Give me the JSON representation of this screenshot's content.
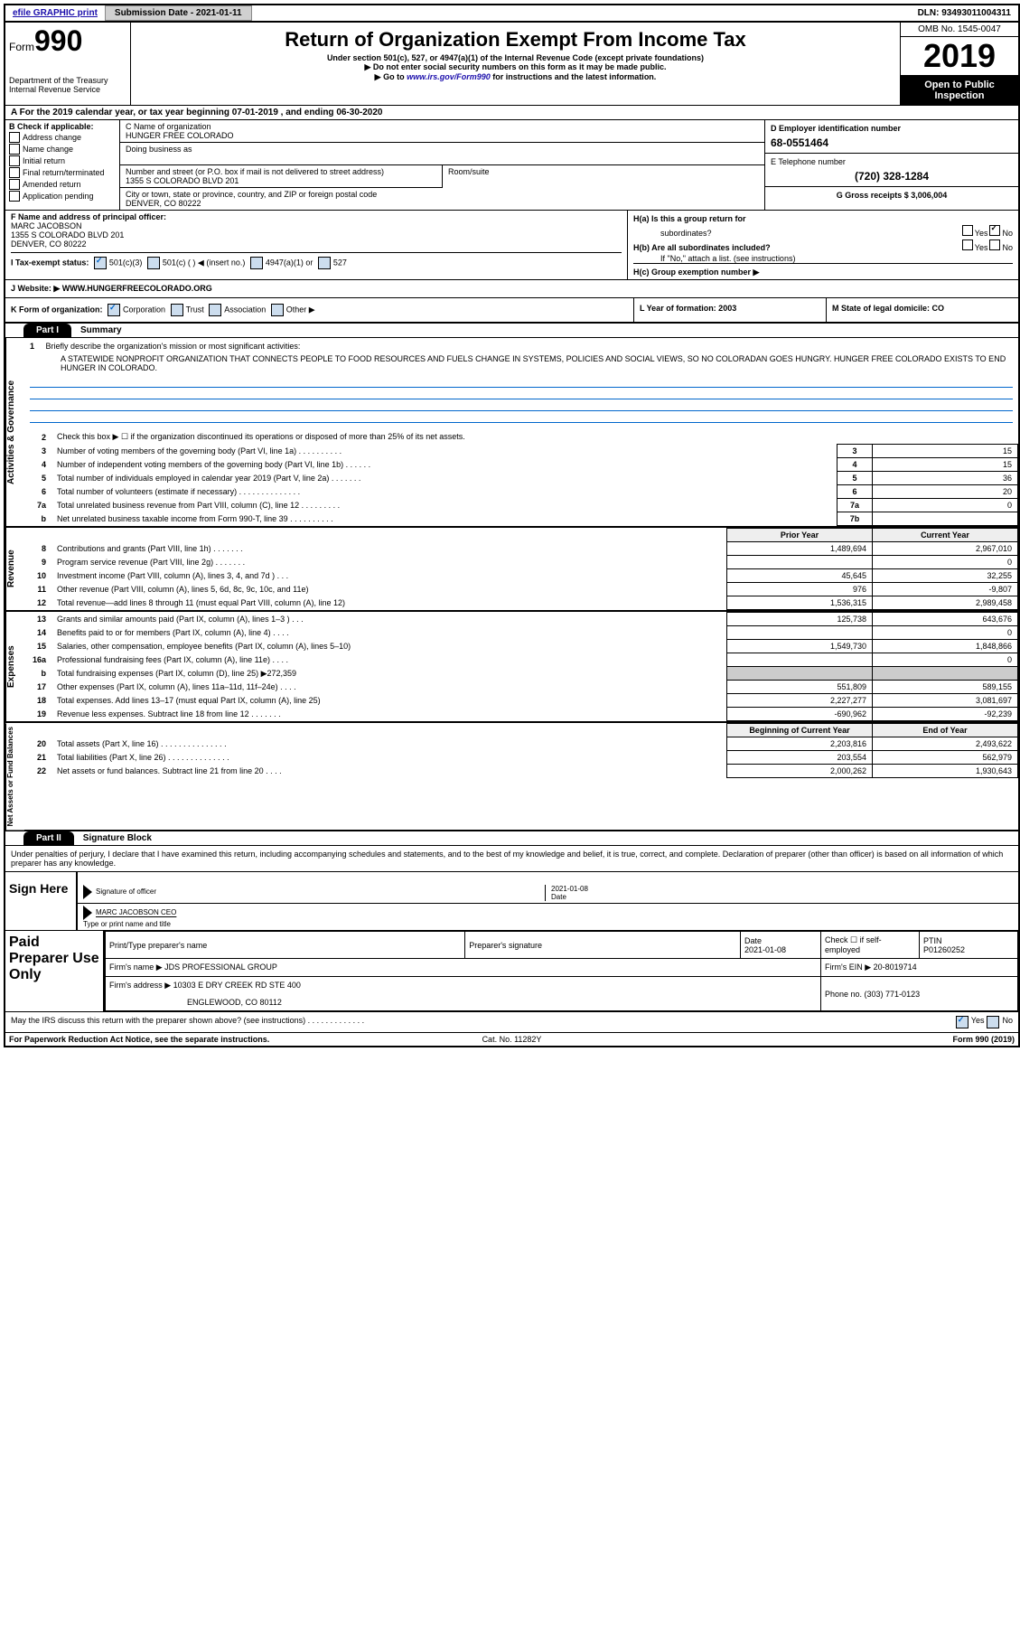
{
  "top": {
    "efile": "efile GRAPHIC print",
    "submission": "Submission Date - 2021-01-11",
    "dln": "DLN: 93493011004311"
  },
  "header": {
    "form_prefix": "Form",
    "form_num": "990",
    "title": "Return of Organization Exempt From Income Tax",
    "sub1": "Under section 501(c), 527, or 4947(a)(1) of the Internal Revenue Code (except private foundations)",
    "sub2": "▶ Do not enter social security numbers on this form as it may be made public.",
    "sub3_pre": "▶ Go to ",
    "sub3_link": "www.irs.gov/Form990",
    "sub3_post": " for instructions and the latest information.",
    "dept": "Department of the Treasury\nInternal Revenue Service",
    "omb": "OMB No. 1545-0047",
    "year": "2019",
    "open": "Open to Public Inspection"
  },
  "line_a": "A For the 2019 calendar year, or tax year beginning 07-01-2019    , and ending 06-30-2020",
  "col_b": {
    "hdr": "B Check if applicable:",
    "items": [
      "Address change",
      "Name change",
      "Initial return",
      "Final return/terminated",
      "Amended return",
      "Application pending"
    ]
  },
  "col_c": {
    "name_lbl": "C Name of organization",
    "name": "HUNGER FREE COLORADO",
    "dba": "Doing business as",
    "street_lbl": "Number and street (or P.O. box if mail is not delivered to street address)",
    "street": "1355 S COLORADO BLVD 201",
    "room": "Room/suite",
    "city_lbl": "City or town, state or province, country, and ZIP or foreign postal code",
    "city": "DENVER, CO  80222"
  },
  "col_d": {
    "ein_lbl": "D Employer identification number",
    "ein": "68-0551464",
    "phone_lbl": "E Telephone number",
    "phone": "(720) 328-1284",
    "gross_lbl": "G Gross receipts $ 3,006,004"
  },
  "col_f": {
    "lbl": "F  Name and address of principal officer:",
    "name": "MARC JACOBSON",
    "addr1": "1355 S COLORADO BLVD 201",
    "addr2": "DENVER, CO  80222"
  },
  "col_h": {
    "a": "H(a)  Is this a group return for",
    "a2": "subordinates?",
    "b": "H(b)  Are all subordinates included?",
    "c_note": "If \"No,\" attach a list. (see instructions)",
    "c": "H(c)  Group exemption number ▶",
    "yes": "Yes",
    "no": "No"
  },
  "row_i": {
    "lbl": "I  Tax-exempt status:",
    "o1": "501(c)(3)",
    "o2": "501(c) (   ) ◀ (insert no.)",
    "o3": "4947(a)(1) or",
    "o4": "527"
  },
  "row_j": {
    "lbl": "J  Website: ▶",
    "val": "WWW.HUNGERFREECOLORADO.ORG"
  },
  "row_k": {
    "lbl": "K Form of organization:",
    "corp": "Corporation",
    "trust": "Trust",
    "assoc": "Association",
    "other": "Other ▶",
    "l_lbl": "L Year of formation: 2003",
    "m_lbl": "M State of legal domicile: CO"
  },
  "part1": {
    "tab": "Part I",
    "title": "Summary",
    "briefly_num": "1",
    "briefly": "Briefly describe the organization's mission or most significant activities:",
    "mission": "A STATEWIDE NONPROFIT ORGANIZATION THAT CONNECTS PEOPLE TO FOOD RESOURCES AND FUELS CHANGE IN SYSTEMS, POLICIES AND SOCIAL VIEWS, SO NO COLORADAN GOES HUNGRY. HUNGER FREE COLORADO EXISTS TO END HUNGER IN COLORADO."
  },
  "vtabs": {
    "gov": "Activities & Governance",
    "rev": "Revenue",
    "exp": "Expenses",
    "net": "Net Assets or Fund Balances"
  },
  "gov_rows": [
    {
      "n": "2",
      "t": "Check this box ▶ ☐ if the organization discontinued its operations or disposed of more than 25% of its net assets.",
      "box": "",
      "v": ""
    },
    {
      "n": "3",
      "t": "Number of voting members of the governing body (Part VI, line 1a)  .    .    .    .    .    .    .    .    .    .",
      "box": "3",
      "v": "15"
    },
    {
      "n": "4",
      "t": "Number of independent voting members of the governing body (Part VI, line 1b)  .    .    .    .    .    .",
      "box": "4",
      "v": "15"
    },
    {
      "n": "5",
      "t": "Total number of individuals employed in calendar year 2019 (Part V, line 2a)  .    .    .    .    .    .    .",
      "box": "5",
      "v": "36"
    },
    {
      "n": "6",
      "t": "Total number of volunteers (estimate if necessary)    .    .    .    .    .    .    .    .    .    .    .    .    .    .",
      "box": "6",
      "v": "20"
    },
    {
      "n": "7a",
      "t": "Total unrelated business revenue from Part VIII, column (C), line 12    .    .    .    .    .    .    .    .    .",
      "box": "7a",
      "v": "0"
    },
    {
      "n": "b",
      "t": "Net unrelated business taxable income from Form 990-T, line 39    .    .    .    .    .    .    .    .    .    .",
      "box": "7b",
      "v": ""
    }
  ],
  "rev_hdr": {
    "py": "Prior Year",
    "cy": "Current Year"
  },
  "rev_rows": [
    {
      "n": "8",
      "t": "Contributions and grants (Part VIII, line 1h)    .    .    .    .    .    .    .",
      "py": "1,489,694",
      "cy": "2,967,010"
    },
    {
      "n": "9",
      "t": "Program service revenue (Part VIII, line 2g)    .    .    .    .    .    .    .",
      "py": "",
      "cy": "0"
    },
    {
      "n": "10",
      "t": "Investment income (Part VIII, column (A), lines 3, 4, and 7d )    .    .    .",
      "py": "45,645",
      "cy": "32,255"
    },
    {
      "n": "11",
      "t": "Other revenue (Part VIII, column (A), lines 5, 6d, 8c, 9c, 10c, and 11e)",
      "py": "976",
      "cy": "-9,807"
    },
    {
      "n": "12",
      "t": "Total revenue—add lines 8 through 11 (must equal Part VIII, column (A), line 12)",
      "py": "1,536,315",
      "cy": "2,989,458"
    }
  ],
  "exp_rows": [
    {
      "n": "13",
      "t": "Grants and similar amounts paid (Part IX, column (A), lines 1–3 )    .    .    .",
      "py": "125,738",
      "cy": "643,676"
    },
    {
      "n": "14",
      "t": "Benefits paid to or for members (Part IX, column (A), line 4)    .    .    .    .",
      "py": "",
      "cy": "0"
    },
    {
      "n": "15",
      "t": "Salaries, other compensation, employee benefits (Part IX, column (A), lines 5–10)",
      "py": "1,549,730",
      "cy": "1,848,866"
    },
    {
      "n": "16a",
      "t": "Professional fundraising fees (Part IX, column (A), line 11e)    .    .    .    .",
      "py": "",
      "cy": "0"
    },
    {
      "n": "b",
      "t": "Total fundraising expenses (Part IX, column (D), line 25) ▶272,359",
      "py": "grey",
      "cy": "grey"
    },
    {
      "n": "17",
      "t": "Other expenses (Part IX, column (A), lines 11a–11d, 11f–24e)    .    .    .    .",
      "py": "551,809",
      "cy": "589,155"
    },
    {
      "n": "18",
      "t": "Total expenses. Add lines 13–17 (must equal Part IX, column (A), line 25)",
      "py": "2,227,277",
      "cy": "3,081,697"
    },
    {
      "n": "19",
      "t": "Revenue less expenses. Subtract line 18 from line 12    .    .    .    .    .    .    .",
      "py": "-690,962",
      "cy": "-92,239"
    }
  ],
  "net_hdr": {
    "py": "Beginning of Current Year",
    "cy": "End of Year"
  },
  "net_rows": [
    {
      "n": "20",
      "t": "Total assets (Part X, line 16)   .   .   .   .   .   .   .   .   .   .   .   .   .   .   .",
      "py": "2,203,816",
      "cy": "2,493,622"
    },
    {
      "n": "21",
      "t": "Total liabilities (Part X, line 26)   .   .   .   .   .   .   .   .   .   .   .   .   .   .",
      "py": "203,554",
      "cy": "562,979"
    },
    {
      "n": "22",
      "t": "Net assets or fund balances. Subtract line 21 from line 20    .    .    .    .",
      "py": "2,000,262",
      "cy": "1,930,643"
    }
  ],
  "part2": {
    "tab": "Part II",
    "title": "Signature Block",
    "decl": "Under penalties of perjury, I declare that I have examined this return, including accompanying schedules and statements, and to the best of my knowledge and belief, it is true, correct, and complete. Declaration of preparer (other than officer) is based on all information of which preparer has any knowledge."
  },
  "sign": {
    "lbl": "Sign Here",
    "sig_of": "Signature of officer",
    "date": "2021-01-08",
    "date_lbl": "Date",
    "name": "MARC JACOBSON CEO",
    "name_lbl": "Type or print name and title"
  },
  "prep": {
    "lbl": "Paid Preparer Use Only",
    "h1": "Print/Type preparer's name",
    "h2": "Preparer's signature",
    "h3": "Date",
    "h3v": "2021-01-08",
    "h4": "Check ☐ if self-employed",
    "h5": "PTIN",
    "h5v": "P01260252",
    "firm": "Firm's name    ▶ JDS PROFESSIONAL GROUP",
    "ein": "Firm's EIN ▶ 20-8019714",
    "addr": "Firm's address ▶ 10303 E DRY CREEK RD STE 400",
    "addr2": "ENGLEWOOD, CO  80112",
    "phone": "Phone no. (303) 771-0123",
    "discuss": "May the IRS discuss this return with the preparer shown above? (see instructions)   .    .    .    .    .    .    .    .    .    .    .    .    ."
  },
  "footer": {
    "l": "For Paperwork Reduction Act Notice, see the separate instructions.",
    "m": "Cat. No. 11282Y",
    "r": "Form 990 (2019)"
  }
}
